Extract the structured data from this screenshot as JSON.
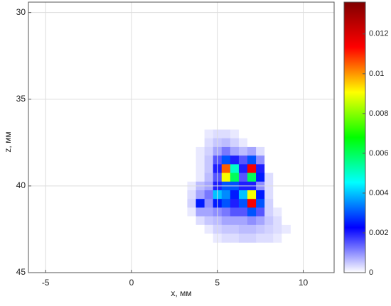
{
  "chart_data": {
    "type": "heatmap",
    "xlabel": "x, мм",
    "ylabel": "z, мм",
    "x": [
      3,
      3.5,
      4,
      4.5,
      5,
      5.5,
      6,
      6.5,
      7,
      7.5,
      8,
      8.5,
      9
    ],
    "y": [
      37,
      37.5,
      38,
      38.5,
      39,
      39.5,
      40,
      40.5,
      41,
      41.5,
      42,
      42.5,
      43
    ],
    "values": [
      [
        0,
        0,
        0,
        0.0002,
        0.0003,
        0.0003,
        0.0002,
        0,
        0,
        0,
        0,
        0,
        0
      ],
      [
        0,
        0,
        0,
        0.0003,
        0.0005,
        0.0006,
        0.0004,
        0.0002,
        0,
        0,
        0,
        0,
        0
      ],
      [
        0,
        0,
        0.0002,
        0.0004,
        0.0008,
        0.0012,
        0.0008,
        0.0006,
        0.0008,
        0.0003,
        0,
        0,
        0
      ],
      [
        0,
        0,
        0.0002,
        0.0005,
        0.0015,
        0.003,
        0.002,
        0.0015,
        0.003,
        0.001,
        0,
        0,
        0
      ],
      [
        0,
        0,
        0.0002,
        0.0005,
        0.002,
        0.0105,
        0.005,
        0.002,
        0.0115,
        0.002,
        0,
        0,
        0
      ],
      [
        0,
        0,
        0.0002,
        0.0006,
        0.0015,
        0.009,
        0.006,
        0.0015,
        0.006,
        0.0025,
        0.0003,
        0,
        0
      ],
      [
        0,
        0.0002,
        0.0006,
        0.0008,
        0.002,
        0.003,
        0.003,
        0.002,
        0.002,
        0.001,
        0.0003,
        0,
        0
      ],
      [
        0,
        0.0003,
        0.0008,
        0.0012,
        0.004,
        0.0035,
        0.0025,
        0.004,
        0.009,
        0.0025,
        0.0003,
        0,
        0
      ],
      [
        0,
        0.0004,
        0.0025,
        0.001,
        0.0025,
        0.003,
        0.002,
        0.003,
        0.0115,
        0.003,
        0.0004,
        0,
        0
      ],
      [
        0,
        0.0002,
        0.0008,
        0.0008,
        0.001,
        0.0012,
        0.0015,
        0.0015,
        0.003,
        0.0015,
        0.0004,
        0.0002,
        0
      ],
      [
        0,
        0,
        0.0003,
        0.0005,
        0.0006,
        0.0008,
        0.0008,
        0.0008,
        0.001,
        0.0008,
        0.0005,
        0.0003,
        0
      ],
      [
        0,
        0,
        0,
        0.0002,
        0.0004,
        0.0005,
        0.0005,
        0.0006,
        0.0006,
        0.0005,
        0.0004,
        0.0003,
        0.0002
      ],
      [
        0,
        0,
        0,
        0,
        0.0002,
        0.0003,
        0.0003,
        0.0004,
        0.0004,
        0.0003,
        0.0003,
        0.0002,
        0
      ]
    ],
    "xlim": [
      -6,
      11.8
    ],
    "xticks": [
      -5,
      0,
      5,
      10
    ],
    "ylim": [
      29.4,
      45
    ],
    "yticks": [
      30,
      35,
      40,
      45
    ],
    "y_inverted": true,
    "grid": true,
    "clim": [
      0,
      0.0136
    ],
    "cticks": [
      0,
      0.002,
      0.004,
      0.006,
      0.008,
      0.01,
      0.012
    ],
    "colormap": [
      "#ffffff",
      "#0000ff",
      "#00ffff",
      "#00ff00",
      "#ffff00",
      "#ff0000",
      "#800000"
    ]
  }
}
